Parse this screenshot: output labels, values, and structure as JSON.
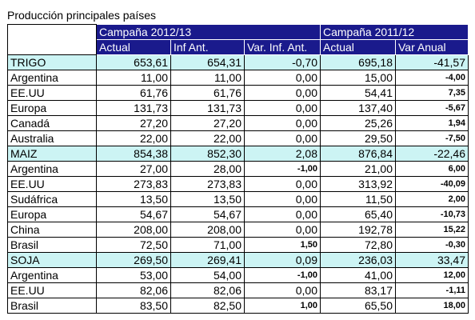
{
  "title": "Producción principales países",
  "header": {
    "group1": "Campaña 2012/13",
    "group2": "Campaña 2011/12",
    "columns": [
      "Actual",
      "Inf Ant.",
      "Var. Inf. Ant.",
      "Actual",
      "Var Anual"
    ]
  },
  "rows": [
    {
      "section": true,
      "name": "TRIGO",
      "actual": "653,61",
      "inf": "654,31",
      "var_inf": "-0,70",
      "prev": "695,18",
      "var_anual": "-41,57"
    },
    {
      "section": false,
      "name": "Argentina",
      "actual": "11,00",
      "inf": "11,00",
      "var_inf": "0,00",
      "prev": "15,00",
      "var_anual": "-4,00"
    },
    {
      "section": false,
      "name": "EE.UU",
      "actual": "61,76",
      "inf": "61,76",
      "var_inf": "0,00",
      "prev": "54,41",
      "var_anual": "7,35"
    },
    {
      "section": false,
      "name": "Europa",
      "actual": "131,73",
      "inf": "131,73",
      "var_inf": "0,00",
      "prev": "137,40",
      "var_anual": "-5,67"
    },
    {
      "section": false,
      "name": "Canadá",
      "actual": "27,20",
      "inf": "27,20",
      "var_inf": "0,00",
      "prev": "25,26",
      "var_anual": "1,94"
    },
    {
      "section": false,
      "name": "Australia",
      "actual": "22,00",
      "inf": "22,00",
      "var_inf": "0,00",
      "prev": "29,50",
      "var_anual": "-7,50"
    },
    {
      "section": true,
      "name": "MAIZ",
      "actual": "854,38",
      "inf": "852,30",
      "var_inf": "2,08",
      "prev": "876,84",
      "var_anual": "-22,46"
    },
    {
      "section": false,
      "name": "Argentina",
      "actual": "27,00",
      "inf": "28,00",
      "var_inf": "-1,00",
      "prev": "21,00",
      "var_anual": "6,00"
    },
    {
      "section": false,
      "name": "EE.UU",
      "actual": "273,83",
      "inf": "273,83",
      "var_inf": "0,00",
      "prev": "313,92",
      "var_anual": "-40,09"
    },
    {
      "section": false,
      "name": "Sudáfrica",
      "actual": "13,50",
      "inf": "13,50",
      "var_inf": "0,00",
      "prev": "11,50",
      "var_anual": "2,00"
    },
    {
      "section": false,
      "name": "Europa",
      "actual": "54,67",
      "inf": "54,67",
      "var_inf": "0,00",
      "prev": "65,40",
      "var_anual": "-10,73"
    },
    {
      "section": false,
      "name": "China",
      "actual": "208,00",
      "inf": "208,00",
      "var_inf": "0,00",
      "prev": "192,78",
      "var_anual": "15,22"
    },
    {
      "section": false,
      "name": "Brasil",
      "actual": "72,50",
      "inf": "71,00",
      "var_inf": "1,50",
      "prev": "72,80",
      "var_anual": "-0,30"
    },
    {
      "section": true,
      "name": "SOJA",
      "actual": "269,50",
      "inf": "269,41",
      "var_inf": "0,09",
      "prev": "236,03",
      "var_anual": "33,47"
    },
    {
      "section": false,
      "name": "Argentina",
      "actual": "53,00",
      "inf": "54,00",
      "var_inf": "-1,00",
      "prev": "41,00",
      "var_anual": "12,00"
    },
    {
      "section": false,
      "name": "EE.UU",
      "actual": "82,06",
      "inf": "82,06",
      "var_inf": "0,00",
      "prev": "83,17",
      "var_anual": "-1,11"
    },
    {
      "section": false,
      "name": "Brasil",
      "actual": "83,50",
      "inf": "82,50",
      "var_inf": "1,00",
      "prev": "65,50",
      "var_anual": "18,00"
    }
  ],
  "colors": {
    "header_bg": "#1a1a8c",
    "section_bg": "#ccf4f4"
  }
}
